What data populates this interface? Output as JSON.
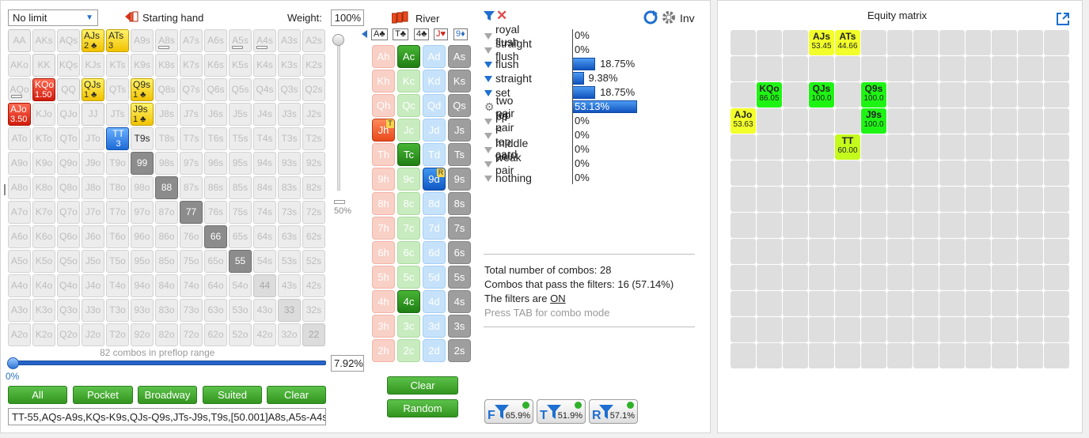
{
  "left": {
    "limit_select": "No limit",
    "starting_hand_label": "Starting hand",
    "weight_label": "Weight:",
    "weight_value": "100%",
    "river_label": "River",
    "vslider_label": "50%",
    "combos_caption": "82 combos in preflop range",
    "percent_value": "7.92%",
    "slider_min_label": "0%",
    "buttons": [
      "All",
      "Pocket",
      "Broadway",
      "Suited",
      "Clear"
    ],
    "range_text": "TT-55,AQs-A9s,KQs-K9s,QJs-Q9s,JTs-J9s,T9s,[50.001]A8s,A5s-A4s,",
    "card_buttons": [
      "Clear",
      "Random"
    ],
    "board_cards": [
      "A♣",
      "T♣",
      "4♣",
      "J♥",
      "9♦"
    ]
  },
  "matrix": {
    "ranks": [
      "A",
      "K",
      "Q",
      "J",
      "T",
      "9",
      "8",
      "7",
      "6",
      "5",
      "4",
      "3",
      "2"
    ],
    "selected": [
      {
        "hand": "AJs",
        "sub": "2",
        "style": "y",
        "suit": "♣"
      },
      {
        "hand": "ATs",
        "sub": "3",
        "style": "y",
        "suit": ""
      },
      {
        "hand": "KQo",
        "sub": "1.50",
        "style": "r",
        "suit": ""
      },
      {
        "hand": "QJs",
        "sub": "1",
        "style": "y",
        "suit": "♣"
      },
      {
        "hand": "Q9s",
        "sub": "1",
        "style": "y",
        "suit": "♣"
      },
      {
        "hand": "AJo",
        "sub": "3.50",
        "style": "r",
        "suit": ""
      },
      {
        "hand": "J9s",
        "sub": "1",
        "style": "y",
        "suit": "♣"
      },
      {
        "hand": "TT",
        "sub": "3",
        "style": "b",
        "suit": ""
      },
      {
        "hand": "T9s",
        "sub": "",
        "style": "pale",
        "suit": ""
      }
    ],
    "grey_pairs": [
      "99",
      "88",
      "77",
      "66",
      "55"
    ],
    "light_pairs": [
      "44",
      "33",
      "22",
      "JJ",
      "QQ",
      "KK",
      "AA"
    ]
  },
  "cards": {
    "ranks": [
      "A",
      "K",
      "Q",
      "J",
      "T",
      "9",
      "8",
      "7",
      "6",
      "5",
      "4",
      "3",
      "2"
    ],
    "suits": [
      "h",
      "c",
      "d",
      "s"
    ],
    "active": {
      "Ac": "c-cA",
      "Ad": "c-d",
      "Jh": "c-hA",
      "Tc": "c-cA",
      "9d": "c-dA",
      "4c": "c-cA"
    },
    "badges": {
      "Jh": "T",
      "9d": "R"
    }
  },
  "stats": {
    "rows": [
      {
        "label": "royal flush",
        "value": "0%",
        "pct": 0,
        "filter": false
      },
      {
        "label": "straight flush",
        "value": "0%",
        "pct": 0,
        "filter": false
      },
      {
        "label": "flush",
        "value": "18.75%",
        "pct": 18.75,
        "filter": true
      },
      {
        "label": "straight",
        "value": "9.38%",
        "pct": 9.38,
        "filter": true
      },
      {
        "label": "set",
        "value": "18.75%",
        "pct": 18.75,
        "filter": true
      },
      {
        "label": "two pair",
        "value": "53.13%",
        "pct": 53.13,
        "filter": false,
        "gear": true
      },
      {
        "label": "top pair",
        "value": "0%",
        "pct": 0,
        "filter": false
      },
      {
        "label": "pp < top card",
        "value": "0%",
        "pct": 0,
        "filter": false
      },
      {
        "label": "middle pair",
        "value": "0%",
        "pct": 0,
        "filter": false
      },
      {
        "label": "weak pair",
        "value": "0%",
        "pct": 0,
        "filter": false
      },
      {
        "label": "nothing",
        "value": "0%",
        "pct": 0,
        "filter": false
      }
    ],
    "inv_label": "Inv",
    "total_combos": "Total number of combos: 28",
    "pass_combos": "Combos that pass the filters: 16 (57.14%)",
    "filters_on_prefix": "The filters are ",
    "filters_on_value": "ON",
    "tab_hint": "Press TAB for combo mode",
    "filter_buttons": [
      {
        "letter": "F",
        "value": "65.9%"
      },
      {
        "letter": "T",
        "value": "51.9%"
      },
      {
        "letter": "R",
        "value": "57.1%"
      }
    ]
  },
  "equity": {
    "title": "Equity matrix",
    "cells": [
      {
        "hand": "AJs",
        "eq": "53.45",
        "color": "yel",
        "r": 0,
        "c": 3
      },
      {
        "hand": "ATs",
        "eq": "44.66",
        "color": "yel",
        "r": 0,
        "c": 4
      },
      {
        "hand": "KQo",
        "eq": "86.05",
        "color": "grn",
        "r": 2,
        "c": 1
      },
      {
        "hand": "QJs",
        "eq": "100.0",
        "color": "grn",
        "r": 2,
        "c": 3
      },
      {
        "hand": "Q9s",
        "eq": "100.0",
        "color": "grn",
        "r": 2,
        "c": 5
      },
      {
        "hand": "AJo",
        "eq": "53.63",
        "color": "yel",
        "r": 3,
        "c": 0
      },
      {
        "hand": "J9s",
        "eq": "100.0",
        "color": "grn",
        "r": 3,
        "c": 5
      },
      {
        "hand": "TT",
        "eq": "60.00",
        "color": "yg",
        "r": 4,
        "c": 4
      }
    ]
  },
  "colors": {
    "accent": "#1e6fd0",
    "green_button": "#33951f",
    "selected_yellow": "#f2c200",
    "selected_red": "#d11c0c"
  }
}
